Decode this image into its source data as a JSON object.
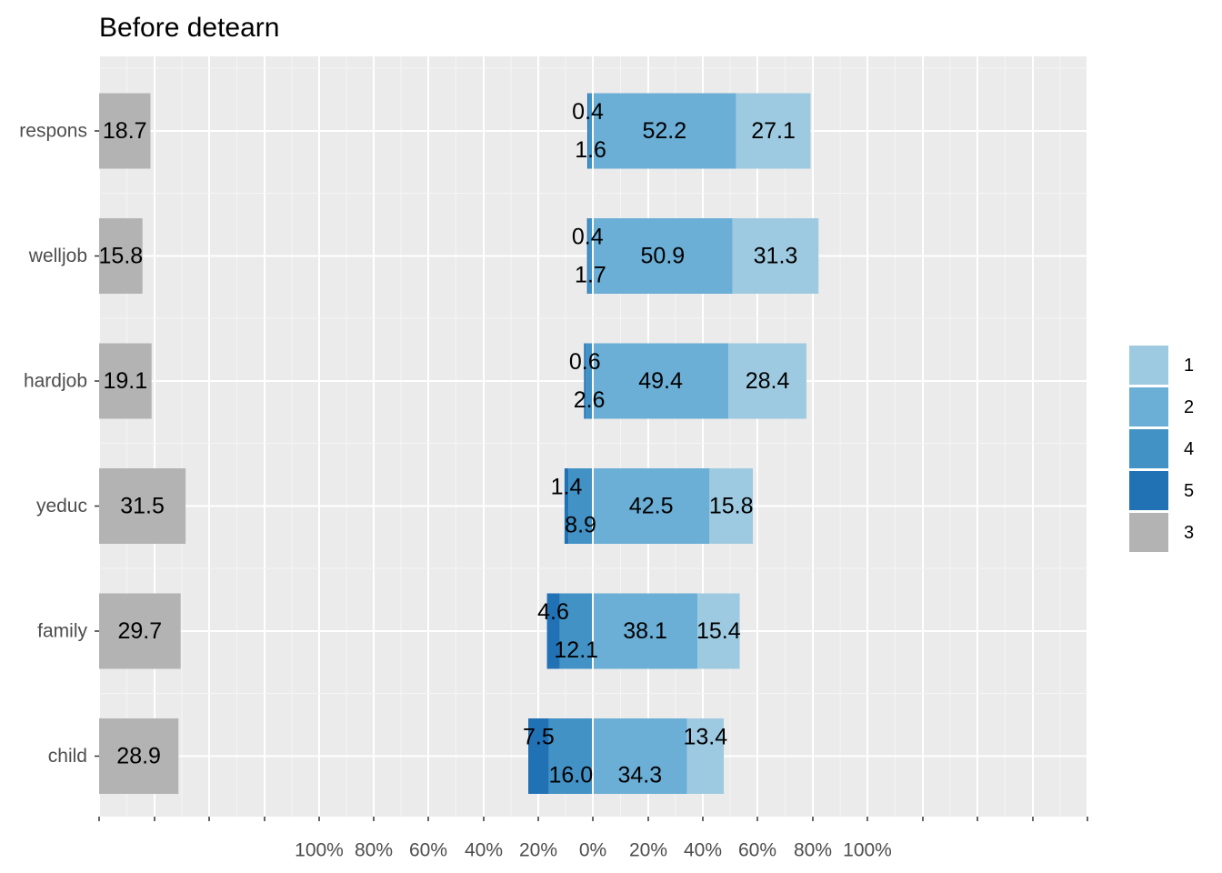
{
  "chart_data": {
    "type": "bar",
    "title": "Before detearn",
    "categories": [
      "respons",
      "welljob",
      "hardjob",
      "yeduc",
      "family",
      "child"
    ],
    "x_tick_labels": [
      "100%",
      "80%",
      "60%",
      "40%",
      "20%",
      "0%",
      "20%",
      "40%",
      "60%",
      "80%",
      "100%"
    ],
    "legend": [
      {
        "label": "1",
        "color": "#9ecae1"
      },
      {
        "label": "2",
        "color": "#6baed6"
      },
      {
        "label": "4",
        "color": "#4292c6"
      },
      {
        "label": "5",
        "color": "#2171b5"
      },
      {
        "label": "3",
        "color": "#b3b3b3"
      }
    ],
    "legend_position": "right",
    "grid": true,
    "series": [
      {
        "name": "1",
        "side": "positive",
        "values": [
          27.1,
          31.3,
          28.4,
          15.8,
          15.4,
          13.4
        ]
      },
      {
        "name": "2",
        "side": "positive",
        "values": [
          52.2,
          50.9,
          49.4,
          42.5,
          38.1,
          34.3
        ]
      },
      {
        "name": "4",
        "side": "negative",
        "values": [
          1.6,
          1.7,
          2.6,
          8.9,
          12.1,
          16.0
        ]
      },
      {
        "name": "5",
        "side": "negative",
        "values": [
          0.4,
          0.4,
          0.6,
          1.4,
          4.6,
          7.5
        ]
      },
      {
        "name": "3",
        "side": "neutral",
        "values": [
          18.7,
          15.8,
          19.1,
          31.5,
          29.7,
          28.9
        ]
      }
    ]
  }
}
